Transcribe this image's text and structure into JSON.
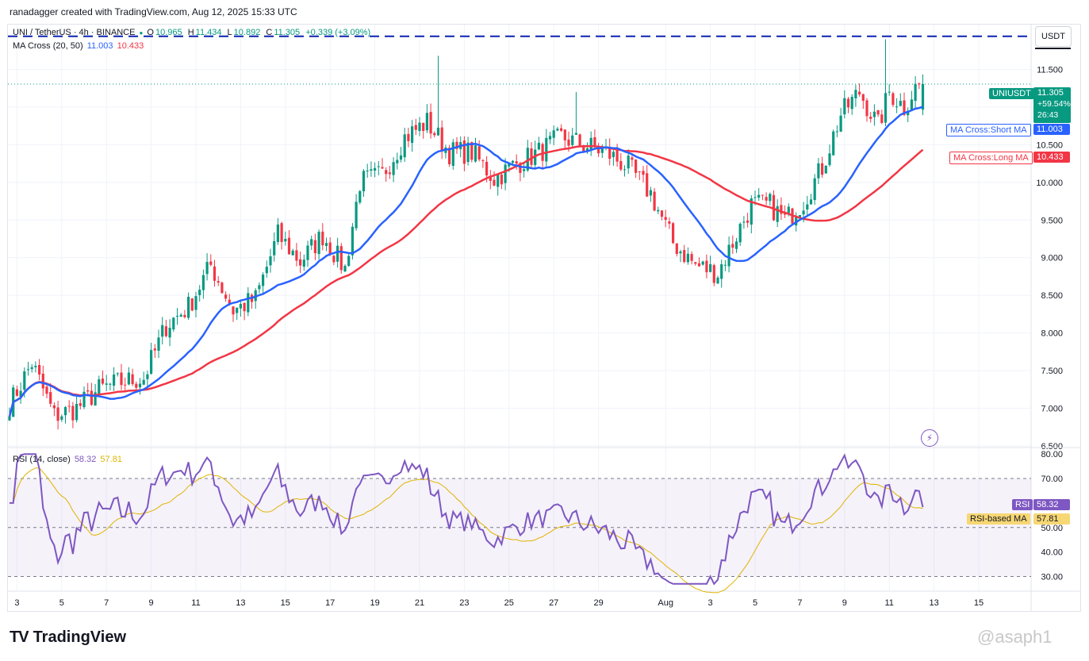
{
  "caption": "ranadagger created with TradingView.com, Aug 12, 2025 15:33 UTC",
  "legend": {
    "symbol": "UNI / TetherUS · 4h · BINANCE",
    "open_label": "O",
    "open": "10.965",
    "high_label": "H",
    "high": "11.434",
    "low_label": "L",
    "low": "10.892",
    "close_label": "C",
    "close": "11.305",
    "change": "+0.339 (+3.09%)",
    "ma_title": "MA Cross (20, 50)",
    "ma_short_value": "11.003",
    "ma_long_value": "10.433"
  },
  "rsi_legend": {
    "title": "RSI (14, close)",
    "rsi": "58.32",
    "rsi_ma": "57.81"
  },
  "unit": "USDT",
  "tags": {
    "symbol_tag": "UNIUSDT",
    "price": "11.305",
    "change_pct": "+59.54%",
    "countdown": "26:43",
    "ma_short_label": "MA Cross:Short MA",
    "ma_short_value": "11.003",
    "ma_long_label": "MA Cross:Long MA",
    "ma_long_value": "10.433",
    "rsi_label": "RSI",
    "rsi_value": "58.32",
    "rsi_ma_label": "RSI-based MA",
    "rsi_ma_value": "57.81"
  },
  "logo": "TradingView",
  "watermark": "@asaph1",
  "colors": {
    "up": "#089981",
    "down": "#f23645",
    "ma_short": "#2962ff",
    "ma_long": "#f23645",
    "rsi": "#7e57c2",
    "rsi_ma": "#e0b400",
    "resistance": "#0d22b0"
  },
  "chart_data": [
    {
      "type": "candlestick",
      "title": "UNI / TetherUS · 4h · BINANCE",
      "ylabel": "USDT",
      "ylim": [
        6.5,
        12.0
      ],
      "y_ticks": [
        "11.500",
        "11.000",
        "10.500",
        "10.000",
        "9.500",
        "9.000",
        "8.500",
        "8.000",
        "7.500",
        "7.000",
        "6.500"
      ],
      "x_ticks": [
        "3",
        "5",
        "7",
        "9",
        "11",
        "13",
        "15",
        "17",
        "19",
        "21",
        "23",
        "25",
        "27",
        "29",
        "Aug",
        "3",
        "5",
        "7",
        "9",
        "11",
        "13",
        "15"
      ],
      "x_tick_index": [
        2,
        14,
        26,
        38,
        50,
        62,
        74,
        86,
        98,
        110,
        122,
        134,
        146,
        158,
        176,
        188,
        200,
        212,
        224,
        236,
        248,
        260
      ],
      "resistance_level": 11.94,
      "anchors": [
        [
          0,
          7.05
        ],
        [
          6,
          7.6
        ],
        [
          12,
          6.9
        ],
        [
          18,
          7.0
        ],
        [
          24,
          7.25
        ],
        [
          30,
          7.35
        ],
        [
          36,
          7.4
        ],
        [
          42,
          8.1
        ],
        [
          48,
          8.35
        ],
        [
          54,
          8.9
        ],
        [
          60,
          8.3
        ],
        [
          66,
          8.45
        ],
        [
          72,
          9.3
        ],
        [
          78,
          8.95
        ],
        [
          84,
          9.3
        ],
        [
          90,
          8.85
        ],
        [
          94,
          10.0
        ],
        [
          100,
          10.1
        ],
        [
          106,
          10.6
        ],
        [
          112,
          10.8
        ],
        [
          118,
          10.4
        ],
        [
          124,
          10.4
        ],
        [
          130,
          10.05
        ],
        [
          136,
          10.25
        ],
        [
          142,
          10.4
        ],
        [
          148,
          10.6
        ],
        [
          154,
          10.5
        ],
        [
          160,
          10.4
        ],
        [
          166,
          10.2
        ],
        [
          172,
          9.85
        ],
        [
          178,
          9.2
        ],
        [
          184,
          8.9
        ],
        [
          190,
          8.8
        ],
        [
          194,
          9.2
        ],
        [
          199,
          9.7
        ],
        [
          204,
          9.7
        ],
        [
          208,
          9.5
        ],
        [
          213,
          9.75
        ],
        [
          218,
          10.2
        ],
        [
          223,
          10.9
        ],
        [
          228,
          11.2
        ],
        [
          233,
          10.75
        ],
        [
          236,
          11.2
        ],
        [
          240,
          11.0
        ],
        [
          243,
          11.26
        ],
        [
          245,
          11.305
        ]
      ],
      "ma_short_last": 11.003,
      "ma_long_last": 10.433
    },
    {
      "type": "line",
      "title": "RSI (14, close)",
      "ylim": [
        25,
        82
      ],
      "y_ticks": [
        "80.00",
        "70.00",
        "60.00",
        "50.00",
        "40.00",
        "30.00"
      ],
      "bands": [
        30,
        50,
        70
      ],
      "rsi_last": 58.32,
      "rsi_ma_last": 57.81
    }
  ]
}
